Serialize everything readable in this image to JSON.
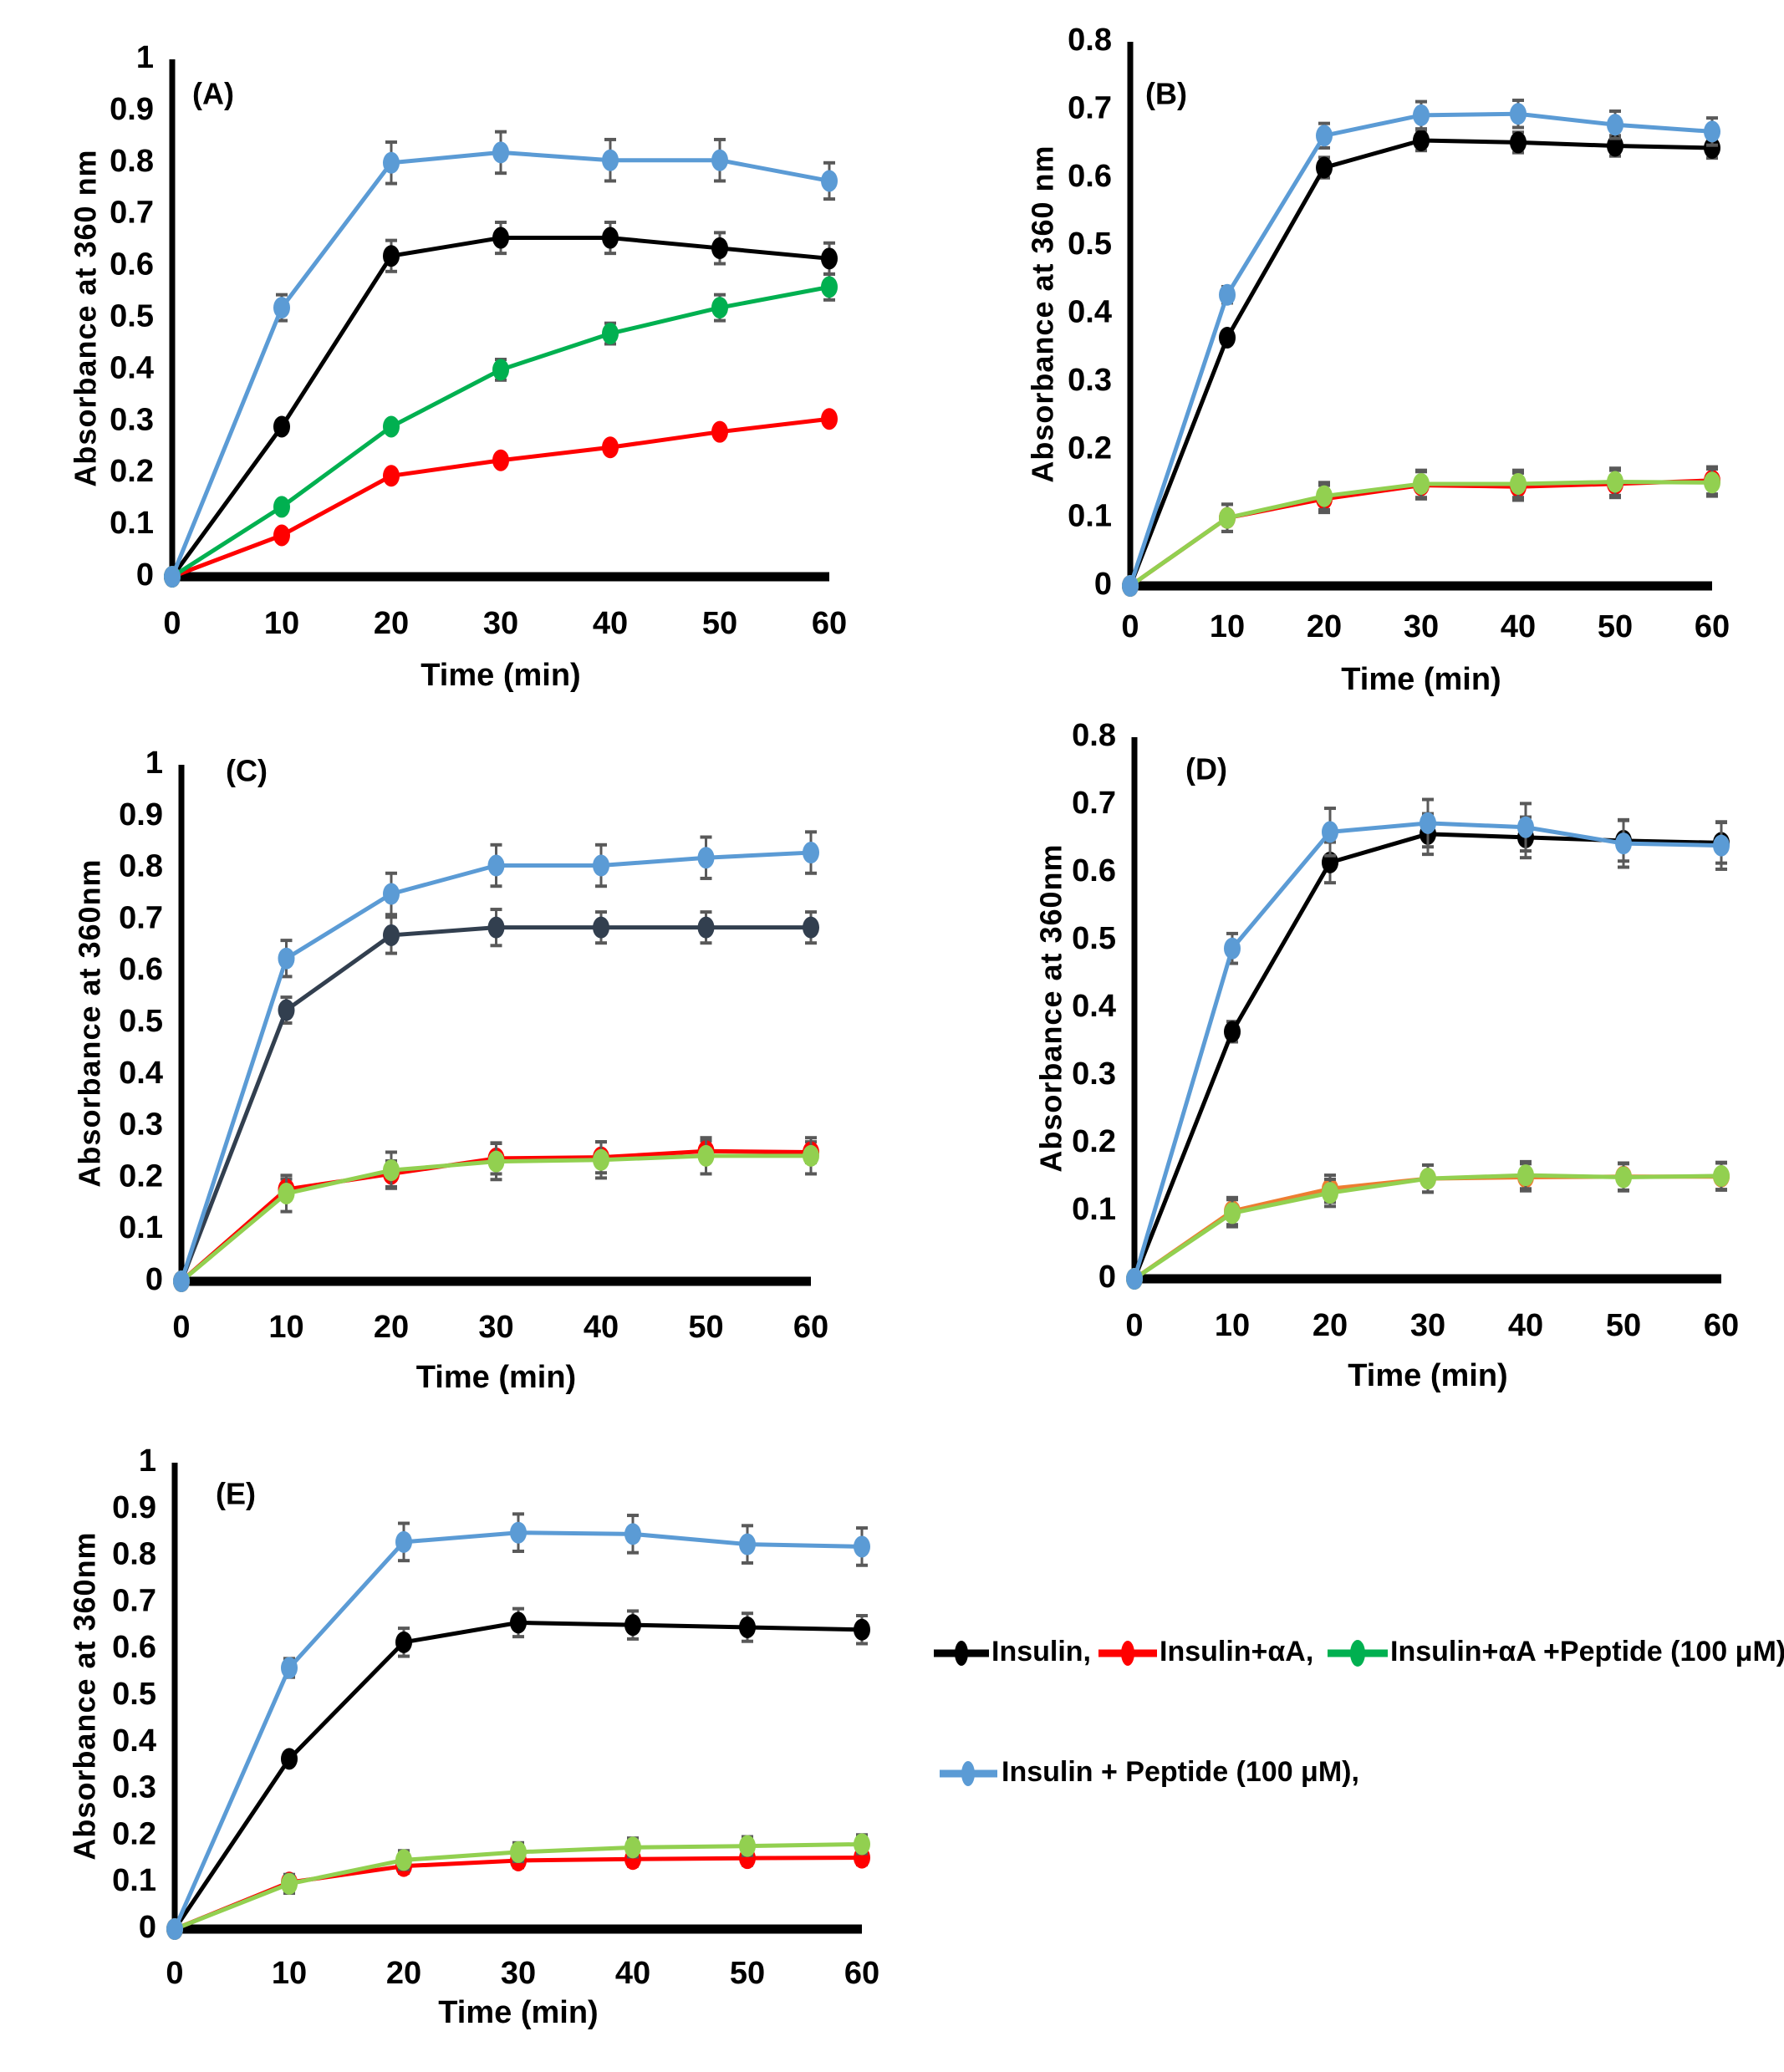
{
  "legend": {
    "entries": [
      {
        "label": "Insulin,",
        "color": "#000000"
      },
      {
        "label": "Insulin+αA,",
        "color": "#ff0000"
      },
      {
        "label": "Insulin+αA +Peptide (100 μM),",
        "color": "#00b050"
      },
      {
        "label": "Insulin + Peptide (100 μM),",
        "color": "#5b9bd5"
      }
    ]
  },
  "chart_data": [
    {
      "type": "line",
      "panel": "(A)",
      "xlabel": "Time (min)",
      "ylabel": "Absorbance at 360 nm",
      "x": [
        0,
        10,
        20,
        30,
        40,
        50,
        60
      ],
      "xticks": [
        "0",
        "10",
        "20",
        "30",
        "40",
        "50",
        "60"
      ],
      "yticks": [
        "0",
        "0.1",
        "0.2",
        "0.3",
        "0.4",
        "0.5",
        "0.6",
        "0.7",
        "0.8",
        "0.9",
        "1"
      ],
      "ylim": [
        0,
        1
      ],
      "grid": false,
      "error_bars": true,
      "series": [
        {
          "name": "Insulin",
          "color": "#000000",
          "values": [
            0,
            0.29,
            0.62,
            0.655,
            0.655,
            0.635,
            0.615
          ],
          "err": [
            0,
            0.01,
            0.03,
            0.03,
            0.03,
            0.03,
            0.03
          ]
        },
        {
          "name": "Insulin+αA",
          "color": "#ff0000",
          "values": [
            0,
            0.08,
            0.195,
            0.225,
            0.25,
            0.28,
            0.305
          ],
          "err": [
            0,
            0.005,
            0.005,
            0.005,
            0.005,
            0.005,
            0.005
          ]
        },
        {
          "name": "Insulin+αA +Peptide (100 μM)",
          "color": "#00b050",
          "values": [
            0,
            0.135,
            0.29,
            0.4,
            0.47,
            0.52,
            0.56
          ],
          "err": [
            0,
            0.005,
            0.01,
            0.02,
            0.02,
            0.025,
            0.025
          ]
        },
        {
          "name": "Insulin + Peptide (100 μM)",
          "color": "#5b9bd5",
          "values": [
            0,
            0.52,
            0.8,
            0.82,
            0.805,
            0.805,
            0.765
          ],
          "err": [
            0,
            0.025,
            0.04,
            0.04,
            0.04,
            0.04,
            0.035
          ]
        }
      ]
    },
    {
      "type": "line",
      "panel": "(B)",
      "xlabel": "Time (min)",
      "ylabel": "Absorbance at 360 nm",
      "x": [
        0,
        10,
        20,
        30,
        40,
        50,
        60
      ],
      "xticks": [
        "0",
        "10",
        "20",
        "30",
        "40",
        "50",
        "60"
      ],
      "yticks": [
        "0",
        "0.1",
        "0.2",
        "0.3",
        "0.4",
        "0.5",
        "0.6",
        "0.7",
        "0.8"
      ],
      "ylim": [
        0,
        0.8
      ],
      "grid": false,
      "error_bars": true,
      "series": [
        {
          "name": "Insulin",
          "color": "#000000",
          "values": [
            0,
            0.365,
            0.615,
            0.655,
            0.652,
            0.647,
            0.644
          ],
          "err": [
            0,
            0.008,
            0.015,
            0.015,
            0.015,
            0.015,
            0.015
          ]
        },
        {
          "name": "Insulin+αA",
          "color": "#ff0000",
          "values": [
            0,
            0.1,
            0.128,
            0.148,
            0.146,
            0.15,
            0.155
          ],
          "err": [
            0,
            0.02,
            0.02,
            0.02,
            0.02,
            0.02,
            0.02
          ]
        },
        {
          "name": "Insulin+αA +Peptide (100 μM)",
          "color": "#92d050",
          "values": [
            0,
            0.1,
            0.132,
            0.15,
            0.15,
            0.153,
            0.152
          ],
          "err": [
            0,
            0.02,
            0.02,
            0.02,
            0.02,
            0.02,
            0.02
          ]
        },
        {
          "name": "Insulin + Peptide (100 μM)",
          "color": "#5b9bd5",
          "values": [
            0,
            0.428,
            0.662,
            0.692,
            0.694,
            0.678,
            0.668
          ],
          "err": [
            0,
            0.012,
            0.018,
            0.02,
            0.02,
            0.02,
            0.02
          ]
        }
      ]
    },
    {
      "type": "line",
      "panel": "(C)",
      "xlabel": "Time (min)",
      "ylabel": "Absorbance  at 360nm",
      "x": [
        0,
        10,
        20,
        30,
        40,
        50,
        60
      ],
      "xticks": [
        "0",
        "10",
        "20",
        "30",
        "40",
        "50",
        "60"
      ],
      "yticks": [
        "0",
        "0.1",
        "0.2",
        "0.3",
        "0.4",
        "0.5",
        "0.6",
        "0.7",
        "0.8",
        "0.9",
        "1"
      ],
      "ylim": [
        0,
        1
      ],
      "grid": false,
      "error_bars": true,
      "series": [
        {
          "name": "Insulin",
          "color": "#323f4f",
          "values": [
            0,
            0.525,
            0.67,
            0.685,
            0.685,
            0.685,
            0.685
          ],
          "err": [
            0,
            0.025,
            0.035,
            0.035,
            0.03,
            0.03,
            0.03
          ]
        },
        {
          "name": "Insulin+αA",
          "color": "#ff0000",
          "values": [
            0,
            0.178,
            0.208,
            0.238,
            0.24,
            0.252,
            0.25
          ],
          "err": [
            0,
            0.02,
            0.025,
            0.03,
            0.03,
            0.02,
            0.02
          ]
        },
        {
          "name": "Insulin+αA +Peptide (100 μM)",
          "color": "#92d050",
          "values": [
            0,
            0.17,
            0.215,
            0.232,
            0.235,
            0.243,
            0.243
          ],
          "err": [
            0,
            0.035,
            0.035,
            0.035,
            0.035,
            0.035,
            0.035
          ]
        },
        {
          "name": "Insulin + Peptide (100 μM)",
          "color": "#5b9bd5",
          "values": [
            0,
            0.625,
            0.75,
            0.805,
            0.805,
            0.82,
            0.83
          ],
          "err": [
            0,
            0.035,
            0.04,
            0.04,
            0.04,
            0.04,
            0.04
          ]
        }
      ]
    },
    {
      "type": "line",
      "panel": "(D)",
      "xlabel": "Time (min)",
      "ylabel": "Absorbance  at 360nm",
      "x": [
        0,
        10,
        20,
        30,
        40,
        50,
        60
      ],
      "xticks": [
        "0",
        "10",
        "20",
        "30",
        "40",
        "50",
        "60"
      ],
      "yticks": [
        "0",
        "0.1",
        "0.2",
        "0.3",
        "0.4",
        "0.5",
        "0.6",
        "0.7",
        "0.8"
      ],
      "ylim": [
        0,
        0.8
      ],
      "grid": false,
      "error_bars": true,
      "series": [
        {
          "name": "Insulin",
          "color": "#000000",
          "values": [
            0,
            0.365,
            0.615,
            0.657,
            0.652,
            0.647,
            0.644
          ],
          "err": [
            0,
            0.015,
            0.03,
            0.03,
            0.03,
            0.03,
            0.03
          ]
        },
        {
          "name": "Insulin+αA",
          "color": "#ed7d31",
          "values": [
            0,
            0.1,
            0.133,
            0.148,
            0.15,
            0.151,
            0.151
          ],
          "err": [
            0,
            0.02,
            0.02,
            0.02,
            0.02,
            0.02,
            0.02
          ]
        },
        {
          "name": "Insulin+αA +Peptide (100 μM)",
          "color": "#92d050",
          "values": [
            0,
            0.097,
            0.127,
            0.148,
            0.153,
            0.15,
            0.152
          ],
          "err": [
            0,
            0.02,
            0.02,
            0.02,
            0.02,
            0.02,
            0.02
          ]
        },
        {
          "name": "Insulin + Peptide (100 μM)",
          "color": "#5b9bd5",
          "values": [
            0,
            0.488,
            0.66,
            0.673,
            0.667,
            0.643,
            0.64
          ],
          "err": [
            0,
            0.022,
            0.035,
            0.035,
            0.035,
            0.035,
            0.035
          ]
        }
      ]
    },
    {
      "type": "line",
      "panel": "(E)",
      "xlabel": "Time (min)",
      "ylabel": "Absorbance  at 360nm",
      "x": [
        0,
        10,
        20,
        30,
        40,
        50,
        60
      ],
      "xticks": [
        "0",
        "10",
        "20",
        "30",
        "40",
        "50",
        "60"
      ],
      "yticks": [
        "0",
        "0.1",
        "0.2",
        "0.3",
        "0.4",
        "0.5",
        "0.6",
        "0.7",
        "0.8",
        "0.9",
        "1"
      ],
      "ylim": [
        0,
        1
      ],
      "grid": false,
      "error_bars": true,
      "series": [
        {
          "name": "Insulin",
          "color": "#000000",
          "values": [
            0,
            0.365,
            0.615,
            0.657,
            0.652,
            0.647,
            0.642
          ],
          "err": [
            0,
            0.01,
            0.03,
            0.03,
            0.03,
            0.03,
            0.03
          ]
        },
        {
          "name": "Insulin+αA",
          "color": "#ff0000",
          "values": [
            0,
            0.1,
            0.135,
            0.147,
            0.15,
            0.152,
            0.153
          ],
          "err": [
            0,
            0.015,
            0.015,
            0.015,
            0.015,
            0.015,
            0.015
          ]
        },
        {
          "name": "Insulin+αA +Peptide (100 μM)",
          "color": "#92d050",
          "values": [
            0,
            0.097,
            0.148,
            0.165,
            0.175,
            0.178,
            0.182
          ],
          "err": [
            0,
            0.02,
            0.02,
            0.02,
            0.02,
            0.02,
            0.02
          ]
        },
        {
          "name": "Insulin + Peptide (100 μM)",
          "color": "#5b9bd5",
          "values": [
            0,
            0.56,
            0.83,
            0.85,
            0.847,
            0.825,
            0.82
          ],
          "err": [
            0,
            0.02,
            0.04,
            0.04,
            0.04,
            0.04,
            0.04
          ]
        }
      ]
    }
  ]
}
